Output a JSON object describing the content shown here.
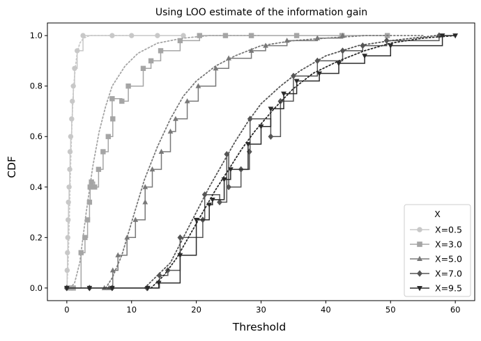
{
  "chart_data": {
    "type": "line",
    "title": "Using LOO estimate of the information gain",
    "xlabel": "Threshold",
    "ylabel": "CDF",
    "xlim": [
      -3,
      63
    ],
    "ylim": [
      -0.05,
      1.05
    ],
    "xticks": [
      0,
      10,
      20,
      30,
      40,
      50,
      60
    ],
    "yticks": [
      0.0,
      0.2,
      0.4,
      0.6,
      0.8,
      1.0
    ],
    "grid": false,
    "legend": {
      "title": "X",
      "placement": "bottom-right"
    },
    "series": [
      {
        "name": "X=0.5",
        "color": "#c8c8c8",
        "marker": "circle",
        "empirical": [
          [
            0,
            0.0
          ],
          [
            0.05,
            0.07
          ],
          [
            0.1,
            0.14
          ],
          [
            0.15,
            0.2
          ],
          [
            0.2,
            0.27
          ],
          [
            0.25,
            0.34
          ],
          [
            0.35,
            0.4
          ],
          [
            0.45,
            0.47
          ],
          [
            0.5,
            0.54
          ],
          [
            0.6,
            0.6
          ],
          [
            0.75,
            0.67
          ],
          [
            0.85,
            0.74
          ],
          [
            1.0,
            0.8
          ],
          [
            1.2,
            0.87
          ],
          [
            1.6,
            0.94
          ],
          [
            2.5,
            1.0
          ],
          [
            7.0,
            1.0
          ],
          [
            10,
            1.0
          ],
          [
            14,
            1.0
          ],
          [
            18,
            1.0
          ]
        ],
        "fitted": [
          [
            -0.2,
            0.0
          ],
          [
            0,
            0.0
          ],
          [
            0.2,
            0.1
          ],
          [
            0.4,
            0.3
          ],
          [
            0.6,
            0.5
          ],
          [
            0.8,
            0.66
          ],
          [
            1.0,
            0.78
          ],
          [
            1.3,
            0.87
          ],
          [
            1.6,
            0.93
          ],
          [
            2.0,
            0.97
          ],
          [
            2.6,
            0.99
          ],
          [
            3.5,
            1.0
          ],
          [
            10,
            1.0
          ]
        ]
      },
      {
        "name": "X=3.0",
        "color": "#a5a5a5",
        "marker": "square",
        "empirical": [
          [
            0.6,
            0.0
          ],
          [
            1.0,
            0.0
          ],
          [
            2.2,
            0.14
          ],
          [
            2.8,
            0.2
          ],
          [
            3.2,
            0.27
          ],
          [
            3.5,
            0.34
          ],
          [
            3.6,
            0.4
          ],
          [
            3.8,
            0.42
          ],
          [
            4.3,
            0.4
          ],
          [
            4.9,
            0.47
          ],
          [
            5.6,
            0.54
          ],
          [
            6.4,
            0.6
          ],
          [
            7.1,
            0.67
          ],
          [
            7.0,
            0.75
          ],
          [
            8.5,
            0.74
          ],
          [
            9.5,
            0.8
          ],
          [
            11.8,
            0.87
          ],
          [
            13.0,
            0.9
          ],
          [
            14.5,
            0.94
          ],
          [
            17.5,
            0.98
          ],
          [
            20.5,
            1.0
          ],
          [
            24.5,
            1.0
          ],
          [
            28.5,
            1.0
          ],
          [
            35.5,
            1.0
          ],
          [
            42.5,
            1.0
          ],
          [
            49.5,
            1.0
          ]
        ],
        "fitted": [
          [
            0.5,
            0.0
          ],
          [
            1.2,
            0.02
          ],
          [
            2.0,
            0.1
          ],
          [
            3.0,
            0.3
          ],
          [
            4.0,
            0.48
          ],
          [
            5.0,
            0.62
          ],
          [
            6.0,
            0.72
          ],
          [
            7.0,
            0.8
          ],
          [
            9.0,
            0.88
          ],
          [
            11,
            0.93
          ],
          [
            14,
            0.97
          ],
          [
            18,
            0.99
          ],
          [
            22,
            1.0
          ],
          [
            30,
            1.0
          ]
        ]
      },
      {
        "name": "X=5.0",
        "color": "#787878",
        "marker": "triangle-up",
        "empirical": [
          [
            5.8,
            0.0
          ],
          [
            6.5,
            0.0
          ],
          [
            7.1,
            0.07
          ],
          [
            7.9,
            0.13
          ],
          [
            9.3,
            0.2
          ],
          [
            10.6,
            0.27
          ],
          [
            12.1,
            0.34
          ],
          [
            12.1,
            0.4
          ],
          [
            13.2,
            0.47
          ],
          [
            14.6,
            0.54
          ],
          [
            16.0,
            0.62
          ],
          [
            16.8,
            0.67
          ],
          [
            18.6,
            0.74
          ],
          [
            20.3,
            0.8
          ],
          [
            23.0,
            0.87
          ],
          [
            25.0,
            0.91
          ],
          [
            28.5,
            0.94
          ],
          [
            30.7,
            0.96
          ],
          [
            34.0,
            0.98
          ],
          [
            38.7,
            0.99
          ],
          [
            42.6,
            1.0
          ]
        ],
        "fitted": [
          [
            6,
            0.0
          ],
          [
            7,
            0.04
          ],
          [
            8.5,
            0.13
          ],
          [
            10,
            0.26
          ],
          [
            12,
            0.43
          ],
          [
            14,
            0.56
          ],
          [
            16,
            0.67
          ],
          [
            18,
            0.76
          ],
          [
            20,
            0.82
          ],
          [
            23,
            0.88
          ],
          [
            26,
            0.92
          ],
          [
            30,
            0.96
          ],
          [
            35,
            0.98
          ],
          [
            40,
            0.99
          ],
          [
            46,
            1.0
          ],
          [
            55,
            1.0
          ]
        ]
      },
      {
        "name": "X=7.0",
        "color": "#555555",
        "marker": "diamond",
        "empirical": [
          [
            0,
            0.0
          ],
          [
            3.5,
            0.0
          ],
          [
            7.0,
            0.0
          ],
          [
            12.4,
            0.0
          ],
          [
            14.3,
            0.05
          ],
          [
            15.6,
            0.07
          ],
          [
            17.5,
            0.2
          ],
          [
            21.0,
            0.27
          ],
          [
            21.3,
            0.37
          ],
          [
            23.6,
            0.34
          ],
          [
            24.7,
            0.53
          ],
          [
            25.0,
            0.4
          ],
          [
            26.9,
            0.47
          ],
          [
            28.2,
            0.54
          ],
          [
            28.3,
            0.67
          ],
          [
            31.5,
            0.6
          ],
          [
            33.0,
            0.74
          ],
          [
            35.0,
            0.84
          ],
          [
            38.7,
            0.9
          ],
          [
            42.6,
            0.94
          ],
          [
            45.7,
            0.96
          ],
          [
            49.4,
            0.98
          ],
          [
            57.5,
            1.0
          ]
        ],
        "fitted": [
          [
            12,
            0.0
          ],
          [
            14,
            0.05
          ],
          [
            16,
            0.1
          ],
          [
            18,
            0.2
          ],
          [
            20,
            0.3
          ],
          [
            22,
            0.4
          ],
          [
            24,
            0.49
          ],
          [
            26,
            0.58
          ],
          [
            28,
            0.66
          ],
          [
            30,
            0.73
          ],
          [
            33,
            0.8
          ],
          [
            36,
            0.86
          ],
          [
            40,
            0.92
          ],
          [
            45,
            0.96
          ],
          [
            50,
            0.98
          ],
          [
            57,
            1.0
          ]
        ]
      },
      {
        "name": "X=9.5",
        "color": "#2a2a2a",
        "marker": "triangle-down",
        "empirical": [
          [
            0,
            0.0
          ],
          [
            3.5,
            0.0
          ],
          [
            7.0,
            0.0
          ],
          [
            12.5,
            0.0
          ],
          [
            14.2,
            0.02
          ],
          [
            17.5,
            0.13
          ],
          [
            20.0,
            0.27
          ],
          [
            22.0,
            0.33
          ],
          [
            22.5,
            0.35
          ],
          [
            24.3,
            0.43
          ],
          [
            25.3,
            0.47
          ],
          [
            28.0,
            0.57
          ],
          [
            30.0,
            0.64
          ],
          [
            31.5,
            0.71
          ],
          [
            33.5,
            0.77
          ],
          [
            35.5,
            0.82
          ],
          [
            39.0,
            0.85
          ],
          [
            42.0,
            0.89
          ],
          [
            46.0,
            0.92
          ],
          [
            50.0,
            0.96
          ],
          [
            58.0,
            1.0
          ],
          [
            60.0,
            1.0
          ]
        ],
        "fitted": [
          [
            13,
            0.0
          ],
          [
            15,
            0.05
          ],
          [
            17,
            0.12
          ],
          [
            19,
            0.21
          ],
          [
            21,
            0.3
          ],
          [
            23,
            0.39
          ],
          [
            25,
            0.47
          ],
          [
            27,
            0.55
          ],
          [
            29,
            0.62
          ],
          [
            32,
            0.71
          ],
          [
            35,
            0.79
          ],
          [
            38,
            0.85
          ],
          [
            42,
            0.9
          ],
          [
            46,
            0.94
          ],
          [
            50,
            0.97
          ],
          [
            55,
            0.99
          ],
          [
            60,
            1.0
          ]
        ]
      }
    ]
  }
}
